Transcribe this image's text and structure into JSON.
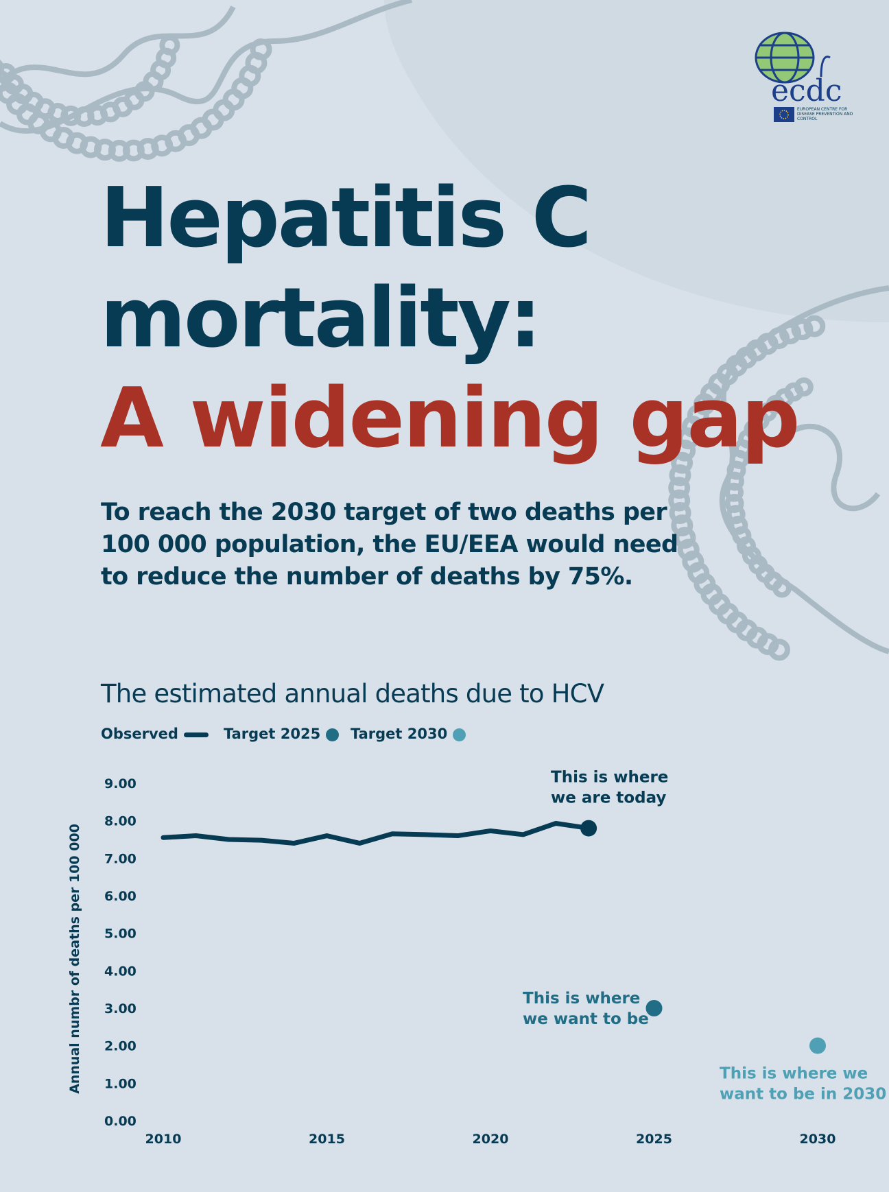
{
  "logo": {
    "wordmark": "ecdc",
    "org_name": "EUROPEAN CENTRE FOR DISEASE PREVENTION AND CONTROL"
  },
  "headline": {
    "line1": "Hepatitis C",
    "line2": "mortality:",
    "line3": "A widening gap"
  },
  "subtitle": "To reach the 2030 target of two deaths per 100 000 population, the EU/EEA would need to reduce the number of deaths by 75%.",
  "colors": {
    "navy": "#073b54",
    "red": "#a93226",
    "target2025": "#226d86",
    "target2030": "#4fa0b4",
    "background": "#d8e1e9"
  },
  "chart_data": {
    "type": "line",
    "title": "The estimated annual deaths due to HCV",
    "ylabel": "Annual numbr of deaths per 100 000",
    "xlabel": "",
    "ylim": [
      0,
      9
    ],
    "xlim": [
      2010,
      2030
    ],
    "y_ticks": [
      "0.00",
      "1.00",
      "2.00",
      "3.00",
      "4.00",
      "5.00",
      "6.00",
      "7.00",
      "8.00",
      "9.00"
    ],
    "x_ticks": [
      "2010",
      "2015",
      "2020",
      "2025",
      "2030"
    ],
    "legend": [
      {
        "label": "Observed",
        "marker": "line"
      },
      {
        "label": "Target 2025",
        "marker": "dot"
      },
      {
        "label": "Target 2030",
        "marker": "dot"
      }
    ],
    "series": [
      {
        "name": "Observed",
        "x": [
          2010,
          2011,
          2012,
          2013,
          2014,
          2015,
          2016,
          2017,
          2018,
          2019,
          2020,
          2021,
          2022,
          2023
        ],
        "values": [
          7.55,
          7.6,
          7.5,
          7.48,
          7.4,
          7.6,
          7.4,
          7.65,
          7.63,
          7.6,
          7.73,
          7.63,
          7.93,
          7.8
        ]
      },
      {
        "name": "Target 2025",
        "x": [
          2025
        ],
        "values": [
          3.0
        ]
      },
      {
        "name": "Target 2030",
        "x": [
          2030
        ],
        "values": [
          2.0
        ]
      }
    ],
    "annotations": [
      {
        "lines": [
          "This is where",
          "we are today"
        ],
        "x": 2023,
        "y": 7.8
      },
      {
        "lines": [
          "This is where",
          "we want to be"
        ],
        "x": 2025,
        "y": 3.0
      },
      {
        "lines": [
          "This is where we",
          "want to be in 2030"
        ],
        "x": 2030,
        "y": 2.0
      }
    ]
  }
}
